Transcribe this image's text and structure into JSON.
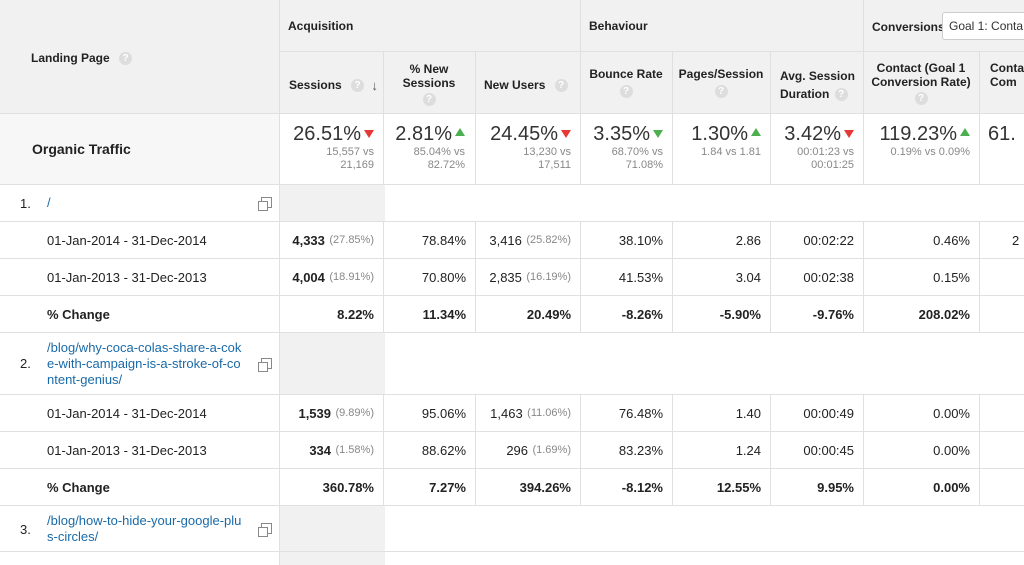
{
  "header": {
    "landing_page": "Landing Page",
    "acquisition": "Acquisition",
    "behaviour": "Behaviour",
    "conversions": "Conversions",
    "goal_select": "Goal 1: Conta",
    "columns": {
      "sessions": "Sessions",
      "new_sessions": "% New Sessions",
      "new_users": "New Users",
      "bounce_rate": "Bounce Rate",
      "pages_session": "Pages/Session",
      "avg_duration": "Avg. Session Duration",
      "contact_rate": "Contact (Goal 1 Conversion Rate)",
      "contact_completions": "Conta Com"
    }
  },
  "summary": {
    "label": "Organic Traffic",
    "sessions": {
      "value": "26.51%",
      "sub1": "15,557 vs",
      "sub2": "21,169"
    },
    "new_sessions": {
      "value": "2.81%",
      "sub1": "85.04% vs",
      "sub2": "82.72%"
    },
    "new_users": {
      "value": "24.45%",
      "sub1": "13,230 vs",
      "sub2": "17,511"
    },
    "bounce_rate": {
      "value": "3.35%",
      "sub1": "68.70% vs",
      "sub2": "71.08%"
    },
    "pages_session": {
      "value": "1.30%",
      "sub1": "1.84 vs 1.81",
      "sub2": ""
    },
    "avg_duration": {
      "value": "3.42%",
      "sub1": "00:01:23 vs",
      "sub2": "00:01:25"
    },
    "contact_rate": {
      "value": "119.23%",
      "sub1": "0.19% vs 0.09%",
      "sub2": ""
    },
    "contact_completions": {
      "value": "61."
    }
  },
  "pages": [
    {
      "index": "1.",
      "url": "/",
      "rows": [
        {
          "label": "01-Jan-2014 - 31-Dec-2014",
          "sessions": "4,333",
          "sessions_pct": "(27.85%)",
          "new_sessions": "78.84%",
          "new_users": "3,416",
          "new_users_pct": "(25.82%)",
          "bounce_rate": "38.10%",
          "pages_session": "2.86",
          "avg_duration": "00:02:22",
          "contact_rate": "0.46%",
          "contact_completions": "2"
        },
        {
          "label": "01-Jan-2013 - 31-Dec-2013",
          "sessions": "4,004",
          "sessions_pct": "(18.91%)",
          "new_sessions": "70.80%",
          "new_users": "2,835",
          "new_users_pct": "(16.19%)",
          "bounce_rate": "41.53%",
          "pages_session": "3.04",
          "avg_duration": "00:02:38",
          "contact_rate": "0.15%",
          "contact_completions": ""
        }
      ],
      "change": {
        "label": "% Change",
        "sessions": "8.22%",
        "new_sessions": "11.34%",
        "new_users": "20.49%",
        "bounce_rate": "-8.26%",
        "pages_session": "-5.90%",
        "avg_duration": "-9.76%",
        "contact_rate": "208.02%"
      }
    },
    {
      "index": "2.",
      "url_lines": [
        "/blog/why-coca-colas-share-a-cok",
        "e-with-campaign-is-a-stroke-of-co",
        "ntent-genius/"
      ],
      "rows": [
        {
          "label": "01-Jan-2014 - 31-Dec-2014",
          "sessions": "1,539",
          "sessions_pct": "(9.89%)",
          "new_sessions": "95.06%",
          "new_users": "1,463",
          "new_users_pct": "(11.06%)",
          "bounce_rate": "76.48%",
          "pages_session": "1.40",
          "avg_duration": "00:00:49",
          "contact_rate": "0.00%"
        },
        {
          "label": "01-Jan-2013 - 31-Dec-2013",
          "sessions": "334",
          "sessions_pct": "(1.58%)",
          "new_sessions": "88.62%",
          "new_users": "296",
          "new_users_pct": "(1.69%)",
          "bounce_rate": "83.23%",
          "pages_session": "1.24",
          "avg_duration": "00:00:45",
          "contact_rate": "0.00%"
        }
      ],
      "change": {
        "label": "% Change",
        "sessions": "360.78%",
        "new_sessions": "7.27%",
        "new_users": "394.26%",
        "bounce_rate": "-8.12%",
        "pages_session": "12.55%",
        "avg_duration": "9.95%",
        "contact_rate": "0.00%"
      }
    },
    {
      "index": "3.",
      "url_lines": [
        "/blog/how-to-hide-your-google-plu",
        "s-circles/"
      ]
    }
  ],
  "colors": {
    "up": "#4caf50",
    "down": "#e53935",
    "link": "#1a6aa8"
  }
}
